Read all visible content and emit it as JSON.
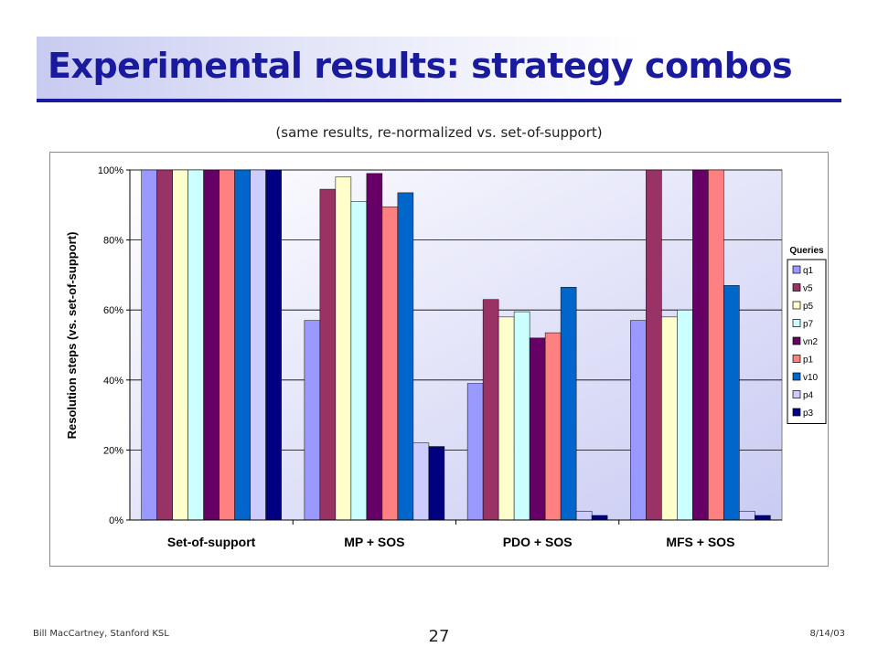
{
  "slide": {
    "title": "Experimental results: strategy combos",
    "subtitle": "(same results, re-normalized vs. set-of-support)",
    "footer_left": "Bill MacCartney, Stanford KSL",
    "page_number": "27",
    "footer_right": "8/14/03"
  },
  "chart_data": {
    "type": "bar",
    "title": "",
    "xlabel": "",
    "ylabel": "Resolution steps (vs. set-of-support)",
    "ylim": [
      0,
      1
    ],
    "yticks": [
      "0%",
      "20%",
      "40%",
      "60%",
      "80%",
      "100%"
    ],
    "grid": true,
    "legend_title": "Queries",
    "legend_position": "right",
    "categories": [
      "Set-of-support",
      "MP + SOS",
      "PDO + SOS",
      "MFS + SOS"
    ],
    "series": [
      {
        "name": "q1",
        "color": "#9999ff",
        "values": [
          1.0,
          0.57,
          0.39,
          0.57
        ]
      },
      {
        "name": "v5",
        "color": "#993366",
        "values": [
          1.0,
          0.945,
          0.63,
          1.0
        ]
      },
      {
        "name": "p5",
        "color": "#ffffcc",
        "values": [
          1.0,
          0.98,
          0.58,
          0.58
        ]
      },
      {
        "name": "p7",
        "color": "#ccffff",
        "values": [
          1.0,
          0.91,
          0.595,
          0.6
        ]
      },
      {
        "name": "vn2",
        "color": "#660066",
        "values": [
          1.0,
          0.99,
          0.52,
          1.0
        ]
      },
      {
        "name": "p1",
        "color": "#ff8080",
        "values": [
          1.0,
          0.895,
          0.535,
          1.0
        ]
      },
      {
        "name": "v10",
        "color": "#0066cc",
        "values": [
          1.0,
          0.935,
          0.665,
          0.67
        ]
      },
      {
        "name": "p4",
        "color": "#ccccff",
        "values": [
          1.0,
          0.22,
          0.025,
          0.025
        ]
      },
      {
        "name": "p3",
        "color": "#000080",
        "values": [
          1.0,
          0.21,
          0.013,
          0.013
        ]
      }
    ]
  }
}
